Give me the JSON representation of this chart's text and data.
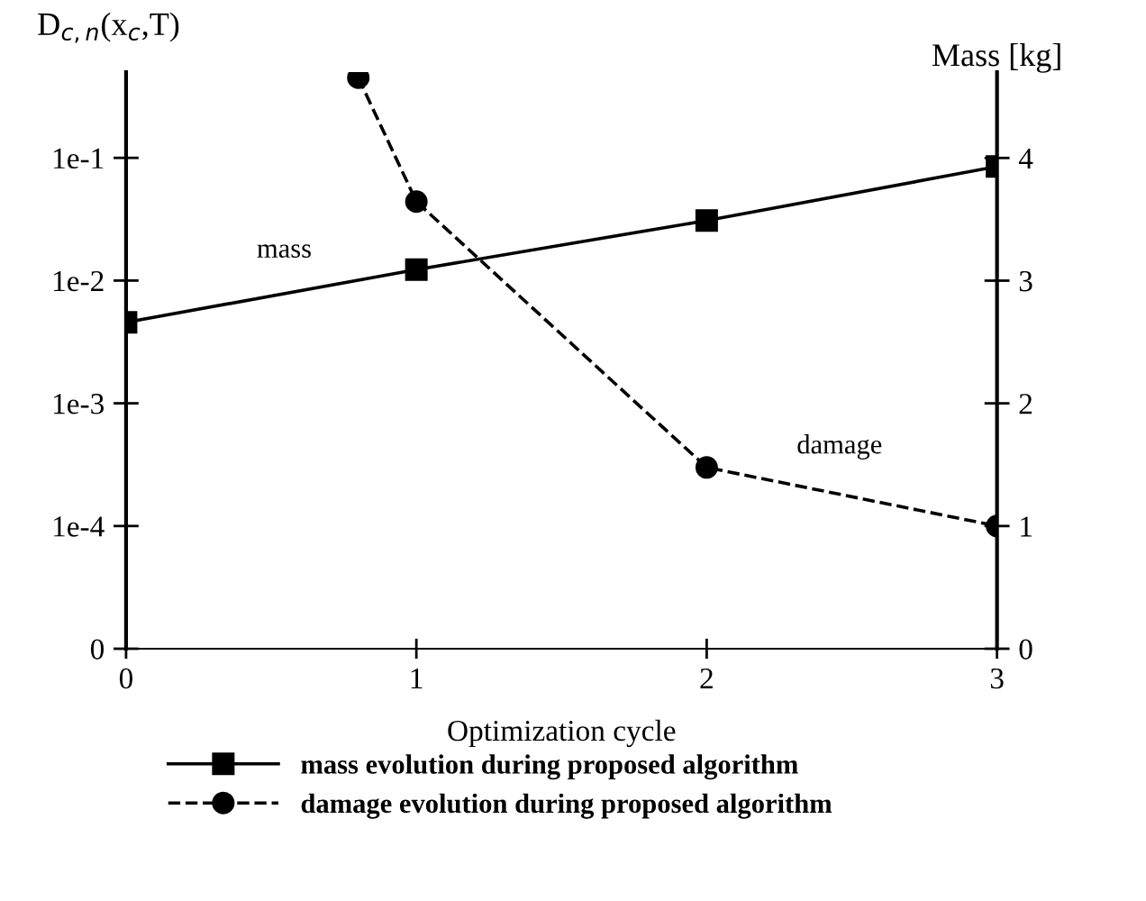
{
  "chart_data": {
    "type": "line",
    "xlabel": "Optimization cycle",
    "ylabel": "D$_{c,n}$(x$_{c}$,T)",
    "y2label": "Mass [kg]",
    "x": [
      0,
      1,
      2,
      3
    ],
    "xlim": [
      0,
      3
    ],
    "xticks": [
      0,
      1,
      2,
      3
    ],
    "log": "y",
    "ylim": [
      1e-05,
      0.5
    ],
    "yticks": [
      {
        "value": 1e-05,
        "label": "0"
      },
      {
        "value": 0.0001,
        "label": "1e-4"
      },
      {
        "value": 0.001,
        "label": "1e-3"
      },
      {
        "value": 0.01,
        "label": "1e-2"
      },
      {
        "value": 0.1,
        "label": "1e-1"
      }
    ],
    "y2lim": [
      0,
      4.7
    ],
    "y2ticks": [
      0,
      1,
      2,
      3,
      4
    ],
    "series": [
      {
        "name": "mass evolution during proposed algorithm",
        "color": "#000000",
        "axis": "y2",
        "marker": "square",
        "line_style": "solid",
        "values": [
          2.66,
          3.09,
          3.49,
          3.93
        ]
      },
      {
        "name": "damage evolution during proposed algorithm",
        "color": "#000000",
        "axis": "y",
        "marker": "circle",
        "line_style": "dashed",
        "x": [
          0.8,
          1,
          2,
          3
        ],
        "values": [
          0.45,
          0.044,
          0.0003,
          0.0001
        ]
      }
    ],
    "annotations": [
      "mass",
      "damage"
    ],
    "grid": false,
    "legend": "bottom"
  }
}
